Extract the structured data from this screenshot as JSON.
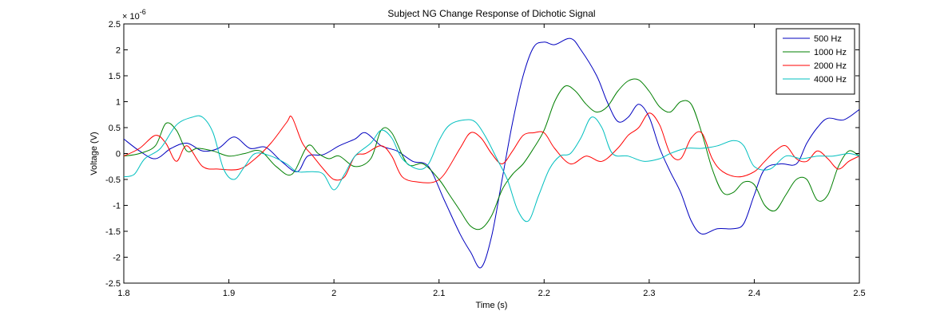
{
  "chart_data": {
    "type": "line",
    "title": "Subject NG Change Response of Dichotic Signal",
    "xlabel": "Time (s)",
    "ylabel": "Voltage (V)",
    "y_exponent_label": "× 10",
    "y_exponent_power": "-6",
    "xlim": [
      1.8,
      2.5
    ],
    "ylim": [
      -2.5,
      2.5
    ],
    "x_ticks": [
      "1.8",
      "1.9",
      "2",
      "2.1",
      "2.2",
      "2.3",
      "2.4",
      "2.5"
    ],
    "y_ticks": [
      "-2.5",
      "-2",
      "-1.5",
      "-1",
      "-0.5",
      "0",
      "0.5",
      "1",
      "1.5",
      "2",
      "2.5"
    ],
    "grid": false,
    "legend_position": "top-right",
    "y_scale_note": "values in units of 1e-6 V",
    "series": [
      {
        "name": "500 Hz",
        "color": "#0000bf",
        "points": [
          [
            1.8,
            0.28
          ],
          [
            1.815,
            0.05
          ],
          [
            1.83,
            -0.1
          ],
          [
            1.845,
            0.1
          ],
          [
            1.86,
            0.2
          ],
          [
            1.875,
            0.05
          ],
          [
            1.89,
            0.1
          ],
          [
            1.905,
            0.32
          ],
          [
            1.92,
            0.1
          ],
          [
            1.935,
            0.12
          ],
          [
            1.95,
            -0.15
          ],
          [
            1.965,
            -0.35
          ],
          [
            1.975,
            -0.05
          ],
          [
            1.99,
            -0.02
          ],
          [
            2.005,
            0.15
          ],
          [
            2.02,
            0.28
          ],
          [
            2.03,
            0.4
          ],
          [
            2.045,
            0.15
          ],
          [
            2.06,
            0.05
          ],
          [
            2.075,
            -0.15
          ],
          [
            2.09,
            -0.25
          ],
          [
            2.105,
            -0.9
          ],
          [
            2.12,
            -1.55
          ],
          [
            2.13,
            -1.9
          ],
          [
            2.14,
            -2.2
          ],
          [
            2.15,
            -1.6
          ],
          [
            2.16,
            -0.5
          ],
          [
            2.17,
            0.6
          ],
          [
            2.18,
            1.5
          ],
          [
            2.19,
            2.05
          ],
          [
            2.2,
            2.15
          ],
          [
            2.21,
            2.1
          ],
          [
            2.225,
            2.22
          ],
          [
            2.235,
            2.0
          ],
          [
            2.25,
            1.5
          ],
          [
            2.26,
            1.0
          ],
          [
            2.27,
            0.62
          ],
          [
            2.28,
            0.7
          ],
          [
            2.29,
            0.95
          ],
          [
            2.3,
            0.7
          ],
          [
            2.31,
            0.1
          ],
          [
            2.32,
            -0.35
          ],
          [
            2.33,
            -0.75
          ],
          [
            2.34,
            -1.3
          ],
          [
            2.35,
            -1.55
          ],
          [
            2.365,
            -1.45
          ],
          [
            2.38,
            -1.45
          ],
          [
            2.39,
            -1.35
          ],
          [
            2.4,
            -0.8
          ],
          [
            2.41,
            -0.3
          ],
          [
            2.425,
            -0.2
          ],
          [
            2.44,
            -0.2
          ],
          [
            2.45,
            0.2
          ],
          [
            2.46,
            0.5
          ],
          [
            2.47,
            0.68
          ],
          [
            2.485,
            0.65
          ],
          [
            2.5,
            0.85
          ]
        ]
      },
      {
        "name": "1000 Hz",
        "color": "#007f00",
        "points": [
          [
            1.8,
            -0.05
          ],
          [
            1.815,
            0.0
          ],
          [
            1.83,
            0.15
          ],
          [
            1.84,
            0.58
          ],
          [
            1.85,
            0.45
          ],
          [
            1.86,
            0.05
          ],
          [
            1.87,
            0.1
          ],
          [
            1.885,
            0.05
          ],
          [
            1.9,
            -0.05
          ],
          [
            1.915,
            0.0
          ],
          [
            1.93,
            0.05
          ],
          [
            1.945,
            -0.25
          ],
          [
            1.96,
            -0.4
          ],
          [
            1.975,
            0.15
          ],
          [
            1.985,
            0.0
          ],
          [
            1.995,
            -0.1
          ],
          [
            2.005,
            -0.05
          ],
          [
            2.02,
            -0.25
          ],
          [
            2.035,
            -0.1
          ],
          [
            2.045,
            0.45
          ],
          [
            2.055,
            0.4
          ],
          [
            2.07,
            -0.2
          ],
          [
            2.085,
            -0.2
          ],
          [
            2.1,
            -0.5
          ],
          [
            2.11,
            -0.8
          ],
          [
            2.12,
            -1.1
          ],
          [
            2.13,
            -1.4
          ],
          [
            2.14,
            -1.45
          ],
          [
            2.15,
            -1.2
          ],
          [
            2.16,
            -0.7
          ],
          [
            2.17,
            -0.4
          ],
          [
            2.18,
            -0.2
          ],
          [
            2.19,
            0.1
          ],
          [
            2.2,
            0.45
          ],
          [
            2.21,
            1.0
          ],
          [
            2.22,
            1.3
          ],
          [
            2.23,
            1.2
          ],
          [
            2.24,
            0.95
          ],
          [
            2.25,
            0.8
          ],
          [
            2.26,
            0.9
          ],
          [
            2.27,
            1.2
          ],
          [
            2.28,
            1.4
          ],
          [
            2.29,
            1.42
          ],
          [
            2.3,
            1.2
          ],
          [
            2.31,
            0.9
          ],
          [
            2.32,
            0.8
          ],
          [
            2.33,
            1.0
          ],
          [
            2.34,
            0.95
          ],
          [
            2.35,
            0.4
          ],
          [
            2.36,
            -0.3
          ],
          [
            2.37,
            -0.75
          ],
          [
            2.38,
            -0.75
          ],
          [
            2.39,
            -0.55
          ],
          [
            2.4,
            -0.6
          ],
          [
            2.41,
            -1.0
          ],
          [
            2.42,
            -1.1
          ],
          [
            2.43,
            -0.8
          ],
          [
            2.44,
            -0.5
          ],
          [
            2.45,
            -0.5
          ],
          [
            2.46,
            -0.9
          ],
          [
            2.47,
            -0.8
          ],
          [
            2.48,
            -0.25
          ],
          [
            2.49,
            0.05
          ],
          [
            2.5,
            -0.05
          ]
        ]
      },
      {
        "name": "2000 Hz",
        "color": "#ff0000",
        "points": [
          [
            1.8,
            -0.05
          ],
          [
            1.815,
            0.1
          ],
          [
            1.83,
            0.35
          ],
          [
            1.84,
            0.2
          ],
          [
            1.85,
            -0.15
          ],
          [
            1.86,
            0.15
          ],
          [
            1.875,
            -0.25
          ],
          [
            1.89,
            -0.3
          ],
          [
            1.91,
            -0.3
          ],
          [
            1.925,
            -0.1
          ],
          [
            1.94,
            0.2
          ],
          [
            1.955,
            0.6
          ],
          [
            1.96,
            0.7
          ],
          [
            1.97,
            0.2
          ],
          [
            1.98,
            -0.05
          ],
          [
            1.99,
            -0.3
          ],
          [
            2.0,
            -0.5
          ],
          [
            2.01,
            -0.45
          ],
          [
            2.02,
            -0.05
          ],
          [
            2.03,
            0.0
          ],
          [
            2.045,
            0.15
          ],
          [
            2.055,
            -0.05
          ],
          [
            2.065,
            -0.45
          ],
          [
            2.08,
            -0.55
          ],
          [
            2.095,
            -0.55
          ],
          [
            2.105,
            -0.4
          ],
          [
            2.12,
            0.1
          ],
          [
            2.13,
            0.4
          ],
          [
            2.14,
            0.3
          ],
          [
            2.15,
            0.0
          ],
          [
            2.16,
            -0.2
          ],
          [
            2.17,
            0.05
          ],
          [
            2.18,
            0.35
          ],
          [
            2.19,
            0.4
          ],
          [
            2.2,
            0.4
          ],
          [
            2.21,
            0.1
          ],
          [
            2.225,
            -0.2
          ],
          [
            2.24,
            -0.05
          ],
          [
            2.255,
            -0.15
          ],
          [
            2.27,
            0.1
          ],
          [
            2.28,
            0.35
          ],
          [
            2.29,
            0.5
          ],
          [
            2.3,
            0.78
          ],
          [
            2.31,
            0.55
          ],
          [
            2.32,
            0.0
          ],
          [
            2.33,
            -0.1
          ],
          [
            2.34,
            0.3
          ],
          [
            2.35,
            0.4
          ],
          [
            2.36,
            -0.1
          ],
          [
            2.37,
            -0.35
          ],
          [
            2.385,
            -0.45
          ],
          [
            2.4,
            -0.35
          ],
          [
            2.41,
            -0.15
          ],
          [
            2.42,
            0.05
          ],
          [
            2.43,
            0.15
          ],
          [
            2.44,
            -0.1
          ],
          [
            2.45,
            -0.15
          ],
          [
            2.46,
            0.05
          ],
          [
            2.47,
            -0.1
          ],
          [
            2.48,
            -0.3
          ],
          [
            2.49,
            -0.15
          ],
          [
            2.5,
            -0.05
          ]
        ]
      },
      {
        "name": "4000 Hz",
        "color": "#00bfbf",
        "points": [
          [
            1.8,
            -0.45
          ],
          [
            1.81,
            -0.4
          ],
          [
            1.82,
            -0.1
          ],
          [
            1.835,
            0.1
          ],
          [
            1.85,
            0.55
          ],
          [
            1.865,
            0.7
          ],
          [
            1.875,
            0.7
          ],
          [
            1.885,
            0.4
          ],
          [
            1.895,
            -0.3
          ],
          [
            1.905,
            -0.5
          ],
          [
            1.915,
            -0.25
          ],
          [
            1.925,
            0.0
          ],
          [
            1.94,
            -0.05
          ],
          [
            1.955,
            -0.2
          ],
          [
            1.965,
            -0.35
          ],
          [
            1.98,
            -0.35
          ],
          [
            1.99,
            -0.4
          ],
          [
            2.0,
            -0.7
          ],
          [
            2.01,
            -0.4
          ],
          [
            2.02,
            -0.05
          ],
          [
            2.035,
            0.2
          ],
          [
            2.045,
            0.45
          ],
          [
            2.055,
            0.3
          ],
          [
            2.065,
            -0.1
          ],
          [
            2.08,
            -0.3
          ],
          [
            2.09,
            -0.2
          ],
          [
            2.1,
            0.25
          ],
          [
            2.11,
            0.55
          ],
          [
            2.125,
            0.65
          ],
          [
            2.135,
            0.6
          ],
          [
            2.145,
            0.3
          ],
          [
            2.155,
            -0.1
          ],
          [
            2.165,
            -0.5
          ],
          [
            2.175,
            -1.1
          ],
          [
            2.185,
            -1.3
          ],
          [
            2.195,
            -0.8
          ],
          [
            2.205,
            -0.3
          ],
          [
            2.215,
            -0.05
          ],
          [
            2.225,
            0.0
          ],
          [
            2.235,
            0.3
          ],
          [
            2.245,
            0.7
          ],
          [
            2.255,
            0.5
          ],
          [
            2.265,
            0.0
          ],
          [
            2.28,
            -0.05
          ],
          [
            2.295,
            -0.15
          ],
          [
            2.31,
            -0.1
          ],
          [
            2.32,
            0.0
          ],
          [
            2.335,
            0.1
          ],
          [
            2.35,
            0.1
          ],
          [
            2.365,
            0.15
          ],
          [
            2.38,
            0.25
          ],
          [
            2.39,
            0.15
          ],
          [
            2.4,
            -0.25
          ],
          [
            2.415,
            -0.3
          ],
          [
            2.43,
            -0.05
          ],
          [
            2.445,
            -0.1
          ],
          [
            2.46,
            -0.05
          ],
          [
            2.475,
            -0.05
          ],
          [
            2.49,
            0.0
          ],
          [
            2.5,
            -0.05
          ]
        ]
      }
    ]
  }
}
